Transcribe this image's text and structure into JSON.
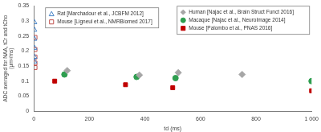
{
  "chart_data": {
    "type": "scatter",
    "x_label": "td (ms)",
    "y_label": "ADC averaged for NAA, tCr and tCho (µm²/ms)",
    "xlim": [
      0,
      1000
    ],
    "xticks": [
      0,
      200,
      400,
      600,
      800,
      {
        "value": 1000,
        "label": "1 000"
      }
    ],
    "ylim": [
      0,
      0.35
    ],
    "yticks": [
      0,
      0.05,
      0.1,
      0.15,
      0.2,
      0.25,
      0.3,
      0.35
    ],
    "grid": false,
    "series": [
      {
        "name": "Rat [Marchadour et al., JCBFM 2012]",
        "color": "#4a86c8",
        "marker": "triangle-open",
        "x": [
          2,
          2,
          2,
          2,
          2,
          2
        ],
        "values": [
          0.295,
          0.27,
          0.24,
          0.21,
          0.18,
          0.165
        ]
      },
      {
        "name": "Mouse [Ligneul et al., NMRBiomed 2017]",
        "color": "#c0504d",
        "marker": "square-open",
        "x": [
          4,
          4,
          4,
          4,
          4
        ],
        "values": [
          0.245,
          0.205,
          0.18,
          0.16,
          0.145
        ]
      },
      {
        "name": "Human [Najac et al., Brain Struct Funct 2016]",
        "color": "#a6a6a6",
        "marker": "diamond",
        "x": [
          120,
          380,
          520,
          750
        ],
        "values": [
          0.135,
          0.12,
          0.128,
          0.122
        ]
      },
      {
        "name": "Macaque [Najac et al., NeuroImage 2014]",
        "color": "#2e9e4f",
        "marker": "circle",
        "x": [
          110,
          370,
          510,
          1000
        ],
        "values": [
          0.122,
          0.114,
          0.11,
          0.1
        ]
      },
      {
        "name": "Mouse [Palombo et al., PNAS 2016]",
        "color": "#c00000",
        "marker": "square",
        "x": [
          75,
          330,
          500,
          1000
        ],
        "values": [
          0.1,
          0.088,
          0.078,
          0.068
        ]
      }
    ]
  }
}
